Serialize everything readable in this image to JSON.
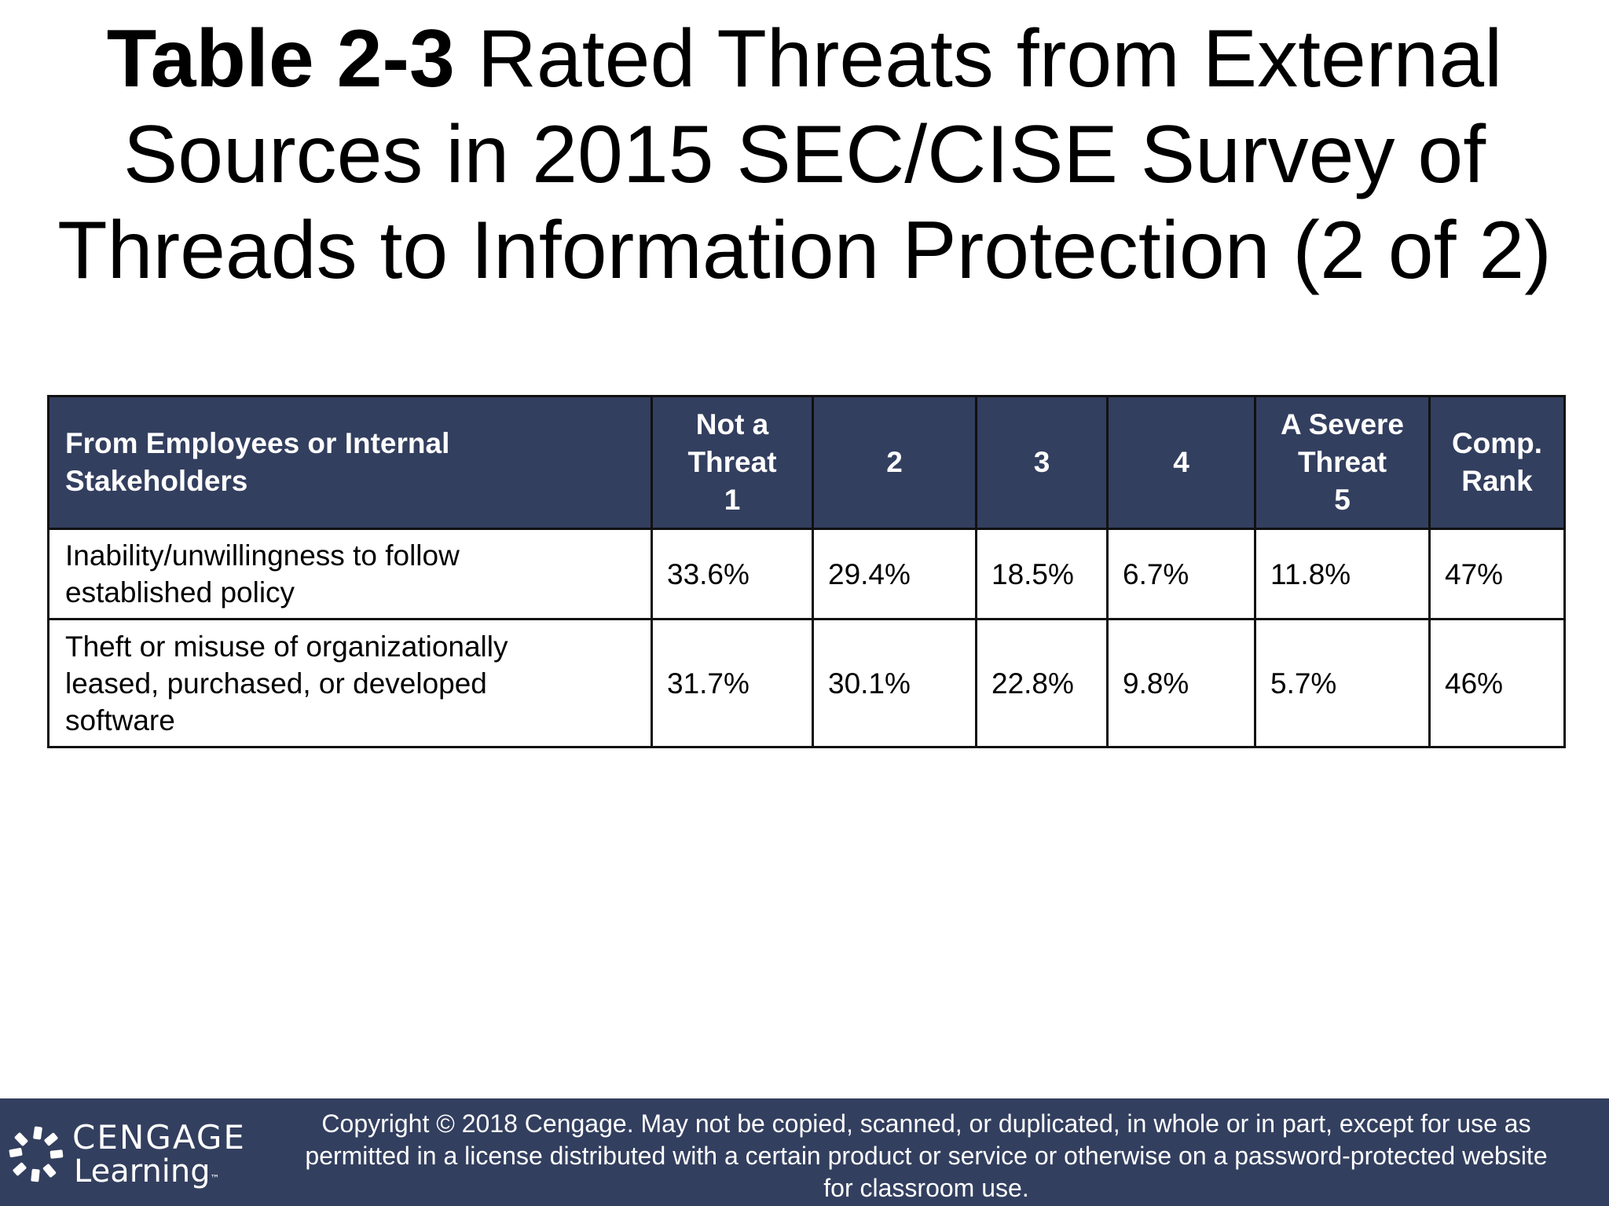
{
  "title": {
    "bold": "Table 2-3",
    "rest": " Rated Threats from External Sources in 2015 SEC/CISE Survey of Threads to Information Protection (2 of 2)"
  },
  "table": {
    "headers": [
      {
        "lines": [
          "From Employees or Internal",
          "Stakeholders"
        ]
      },
      {
        "lines": [
          "Not a",
          "Threat",
          "1"
        ]
      },
      {
        "lines": [
          "2"
        ]
      },
      {
        "lines": [
          "3"
        ]
      },
      {
        "lines": [
          "4"
        ]
      },
      {
        "lines": [
          "A Severe",
          "Threat",
          "5"
        ]
      },
      {
        "lines": [
          "Comp.",
          "Rank"
        ]
      }
    ],
    "rows": [
      {
        "label_lines": [
          "Inability/unwillingness to follow",
          "established policy"
        ],
        "values": [
          "33.6%",
          "29.4%",
          "18.5%",
          "6.7%",
          "11.8%",
          "47%"
        ]
      },
      {
        "label_lines": [
          "Theft or misuse of organizationally",
          "leased, purchased, or developed",
          "software"
        ],
        "values": [
          "31.7%",
          "30.1%",
          "22.8%",
          "9.8%",
          "5.7%",
          "46%"
        ]
      }
    ]
  },
  "footer": {
    "logo_line1": "CENGAGE",
    "logo_line2": "Learning",
    "logo_tm": "™",
    "copyright_lines": [
      "Copyright © 2018 Cengage. May not be copied, scanned, or duplicated, in whole or in part, except for use as",
      "permitted in a license distributed with a certain product or service or otherwise on a password-protected website",
      "for classroom use."
    ]
  },
  "colors": {
    "header_bg": "#333f5f",
    "footer_bg": "#333f5f",
    "logo_mark": "#ffffff"
  }
}
